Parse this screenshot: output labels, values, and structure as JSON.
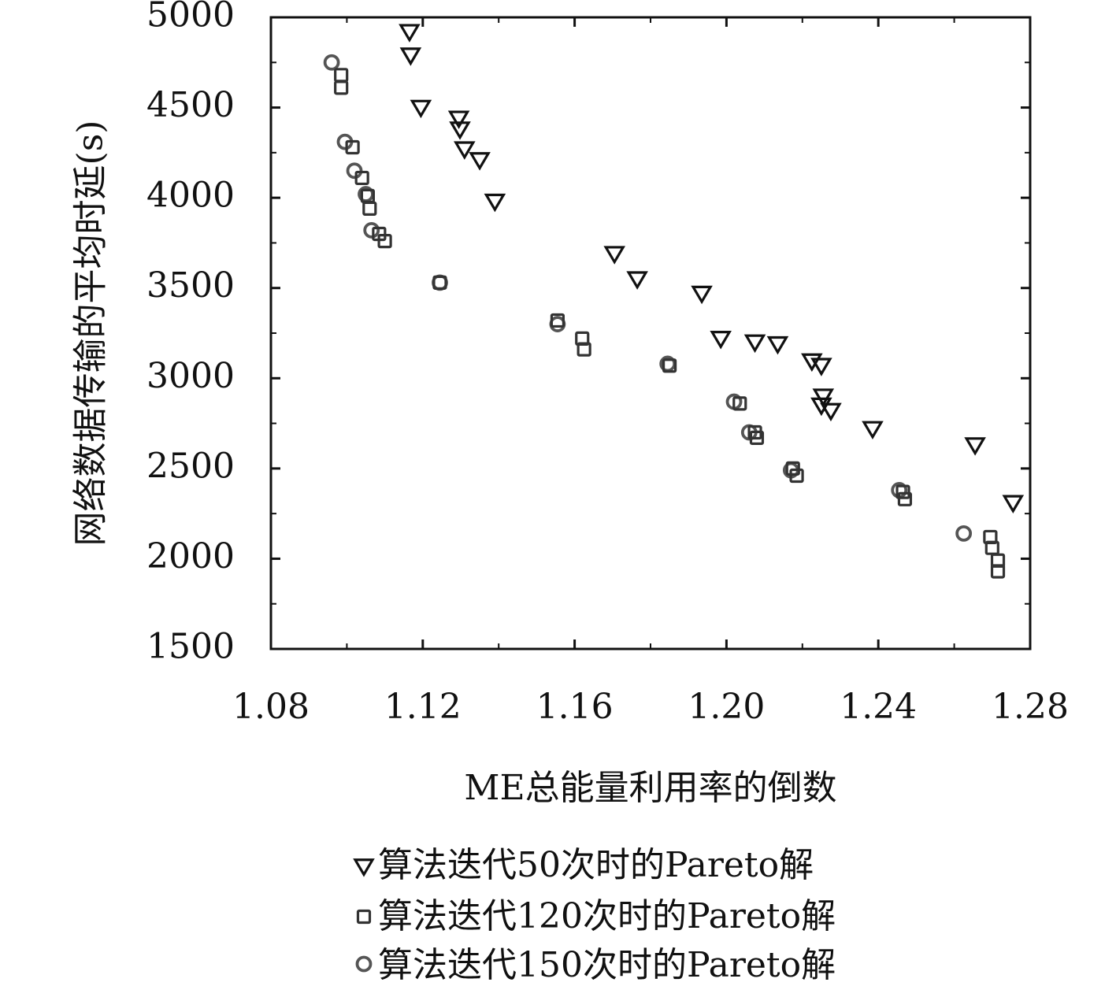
{
  "chart_data": {
    "type": "scatter",
    "title": "",
    "xlabel": "ME总能量利用率的倒数",
    "ylabel": "网络数据传输的平均时延(s)",
    "xlim": [
      1.08,
      1.28
    ],
    "ylim": [
      1500,
      5000
    ],
    "xticks": [
      "1.08",
      "1.12",
      "1.16",
      "1.20",
      "1.24",
      "1.28"
    ],
    "yticks": [
      "1500",
      "2000",
      "2500",
      "3000",
      "3500",
      "4000",
      "4500",
      "5000"
    ],
    "grid": false,
    "legend_position": "bottom",
    "series": [
      {
        "name": "算法迭代50次时的Pareto解",
        "marker": "triangle-down",
        "color": "#111111",
        "points": [
          [
            1.1165,
            4920
          ],
          [
            1.1168,
            4790
          ],
          [
            1.1195,
            4500
          ],
          [
            1.1295,
            4440
          ],
          [
            1.1298,
            4380
          ],
          [
            1.131,
            4270
          ],
          [
            1.135,
            4210
          ],
          [
            1.139,
            3980
          ],
          [
            1.1705,
            3690
          ],
          [
            1.1765,
            3550
          ],
          [
            1.1935,
            3470
          ],
          [
            1.1985,
            3220
          ],
          [
            1.2075,
            3200
          ],
          [
            1.2135,
            3190
          ],
          [
            1.2225,
            3095
          ],
          [
            1.225,
            3070
          ],
          [
            1.2255,
            2900
          ],
          [
            1.225,
            2850
          ],
          [
            1.2275,
            2820
          ],
          [
            1.2385,
            2720
          ],
          [
            1.2655,
            2630
          ],
          [
            1.2755,
            2310
          ]
        ]
      },
      {
        "name": "算法迭代120次时的Pareto解",
        "marker": "square",
        "color": "#333333",
        "points": [
          [
            1.0985,
            4680
          ],
          [
            1.0985,
            4610
          ],
          [
            1.1015,
            4280
          ],
          [
            1.104,
            4110
          ],
          [
            1.1055,
            4010
          ],
          [
            1.106,
            3940
          ],
          [
            1.1085,
            3800
          ],
          [
            1.11,
            3760
          ],
          [
            1.1245,
            3530
          ],
          [
            1.1555,
            3320
          ],
          [
            1.162,
            3220
          ],
          [
            1.1625,
            3160
          ],
          [
            1.185,
            3070
          ],
          [
            1.2035,
            2860
          ],
          [
            1.2075,
            2700
          ],
          [
            1.208,
            2670
          ],
          [
            1.2175,
            2500
          ],
          [
            1.2185,
            2460
          ],
          [
            1.2465,
            2370
          ],
          [
            1.247,
            2330
          ],
          [
            1.2695,
            2120
          ],
          [
            1.27,
            2060
          ],
          [
            1.2715,
            1990
          ],
          [
            1.2715,
            1930
          ]
        ]
      },
      {
        "name": "算法迭代150次时的Pareto解",
        "marker": "circle",
        "color": "#555555",
        "points": [
          [
            1.096,
            4750
          ],
          [
            1.0995,
            4310
          ],
          [
            1.102,
            4150
          ],
          [
            1.105,
            4020
          ],
          [
            1.1065,
            3820
          ],
          [
            1.1245,
            3530
          ],
          [
            1.1555,
            3300
          ],
          [
            1.1845,
            3080
          ],
          [
            1.202,
            2870
          ],
          [
            1.206,
            2700
          ],
          [
            1.217,
            2490
          ],
          [
            1.2455,
            2380
          ],
          [
            1.2625,
            2140
          ]
        ]
      }
    ]
  }
}
